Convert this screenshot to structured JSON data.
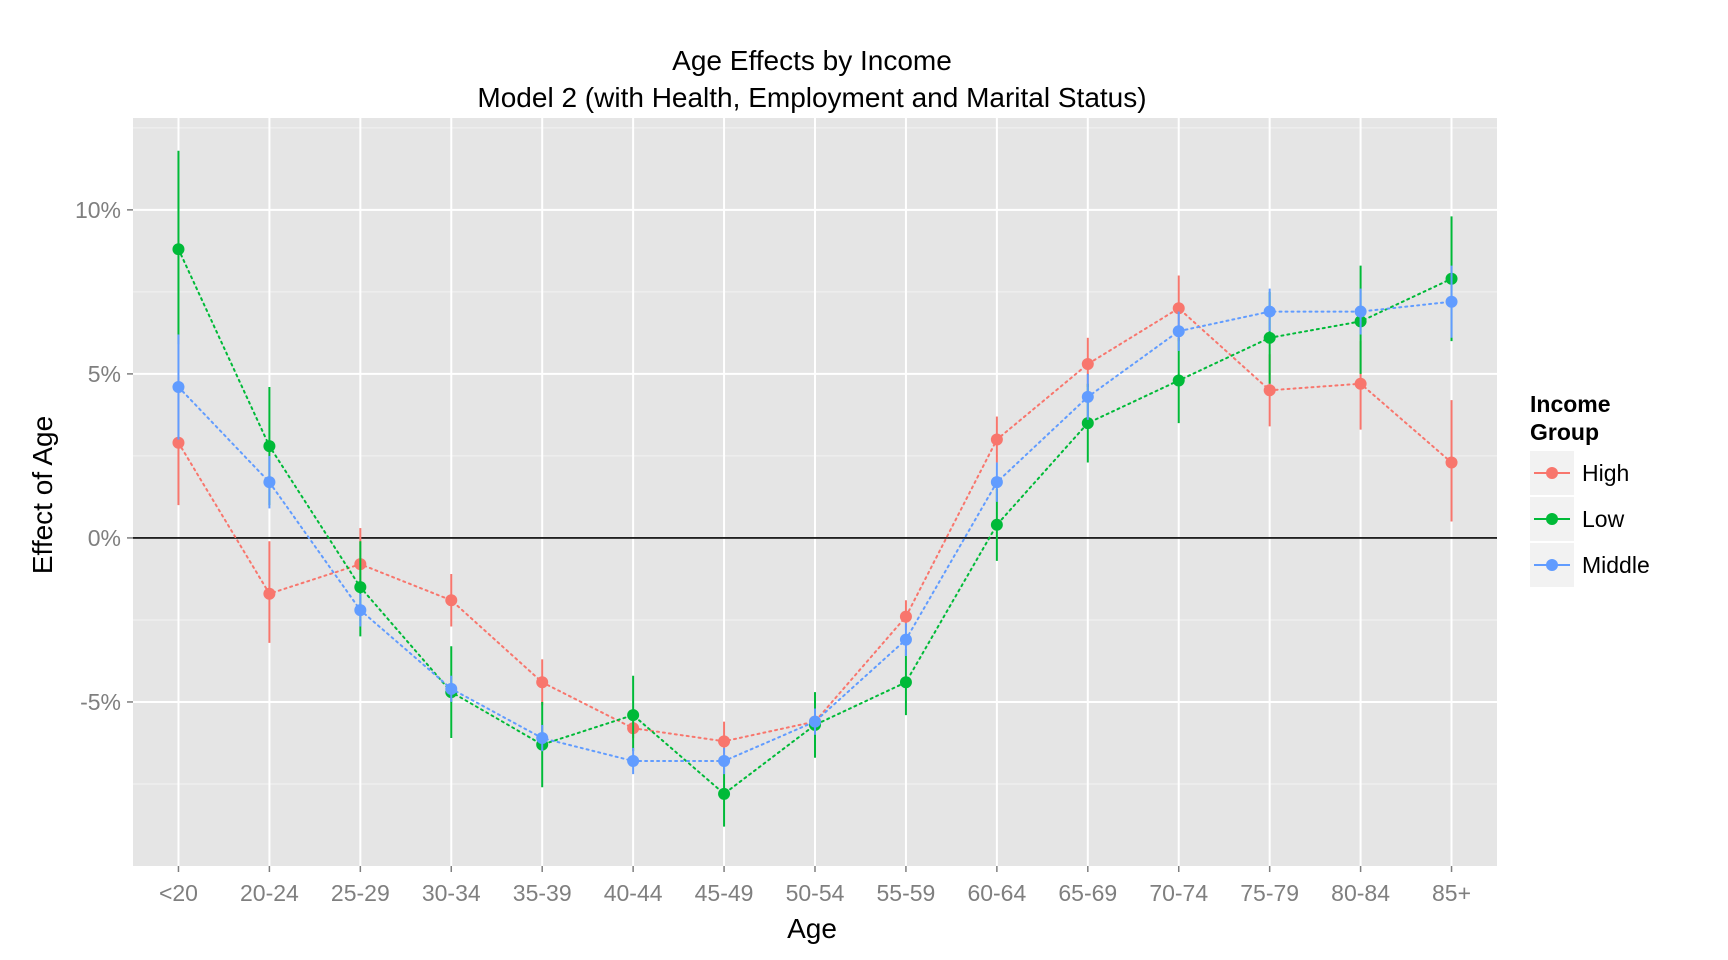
{
  "chart_data": {
    "type": "line",
    "title": "Age Effects by Income",
    "subtitle": "Model 2 (with Health, Employment and Marital Status)",
    "xlabel": "Age",
    "ylabel": "Effect of Age",
    "categories": [
      "<20",
      "20-24",
      "25-29",
      "30-34",
      "35-39",
      "40-44",
      "45-49",
      "50-54",
      "55-59",
      "60-64",
      "65-69",
      "70-74",
      "75-79",
      "80-84",
      "85+"
    ],
    "ylim": [
      -10.0,
      12.8
    ],
    "y_ticks": [
      -5,
      0,
      5,
      10
    ],
    "y_tick_labels": [
      "-5%",
      "0%",
      "5%",
      "10%"
    ],
    "reference_line_y": 0,
    "grid": true,
    "legend": {
      "title_line1": "Income",
      "title_line2": "Group",
      "position": "right"
    },
    "series": [
      {
        "name": "High",
        "color": "#F8766D",
        "values": [
          2.9,
          -1.7,
          -0.8,
          -1.9,
          -4.4,
          -5.8,
          -6.2,
          -5.6,
          -2.4,
          3.0,
          5.3,
          7.0,
          4.5,
          4.7,
          2.3
        ],
        "lower": [
          1.0,
          -3.2,
          -1.6,
          -2.7,
          -5.1,
          -6.1,
          -6.8,
          -6.1,
          -2.8,
          2.3,
          4.6,
          6.0,
          3.4,
          3.3,
          0.5
        ],
        "upper": [
          4.9,
          -0.1,
          0.3,
          -1.1,
          -3.7,
          -5.4,
          -5.6,
          -5.1,
          -1.9,
          3.7,
          6.1,
          8.0,
          5.6,
          6.0,
          4.2
        ]
      },
      {
        "name": "Low",
        "color": "#00BA38",
        "values": [
          8.8,
          2.8,
          -1.5,
          -4.7,
          -6.3,
          -5.4,
          -7.8,
          -5.7,
          -4.4,
          0.4,
          3.5,
          4.8,
          6.1,
          6.6,
          7.9
        ],
        "lower": [
          5.9,
          1.0,
          -3.0,
          -6.1,
          -7.6,
          -6.5,
          -8.8,
          -6.7,
          -5.4,
          -0.7,
          2.3,
          3.5,
          4.7,
          5.0,
          6.0
        ],
        "upper": [
          11.8,
          4.6,
          -0.1,
          -3.3,
          -5.0,
          -4.2,
          -6.8,
          -4.7,
          -3.4,
          1.5,
          4.7,
          6.1,
          7.5,
          8.3,
          9.8
        ]
      },
      {
        "name": "Middle",
        "color": "#619CFF",
        "values": [
          4.6,
          1.7,
          -2.2,
          -4.6,
          -6.1,
          -6.8,
          -6.8,
          -5.6,
          -3.1,
          1.7,
          4.3,
          6.3,
          6.9,
          6.9,
          7.2
        ],
        "lower": [
          3.0,
          0.9,
          -2.7,
          -5.0,
          -6.5,
          -7.2,
          -7.2,
          -6.0,
          -3.6,
          1.1,
          3.6,
          5.7,
          6.3,
          6.2,
          6.1
        ],
        "upper": [
          6.2,
          2.5,
          -1.7,
          -4.2,
          -5.7,
          -6.4,
          -6.4,
          -5.2,
          -2.6,
          2.3,
          5.0,
          6.9,
          7.6,
          7.6,
          8.3
        ]
      }
    ]
  }
}
